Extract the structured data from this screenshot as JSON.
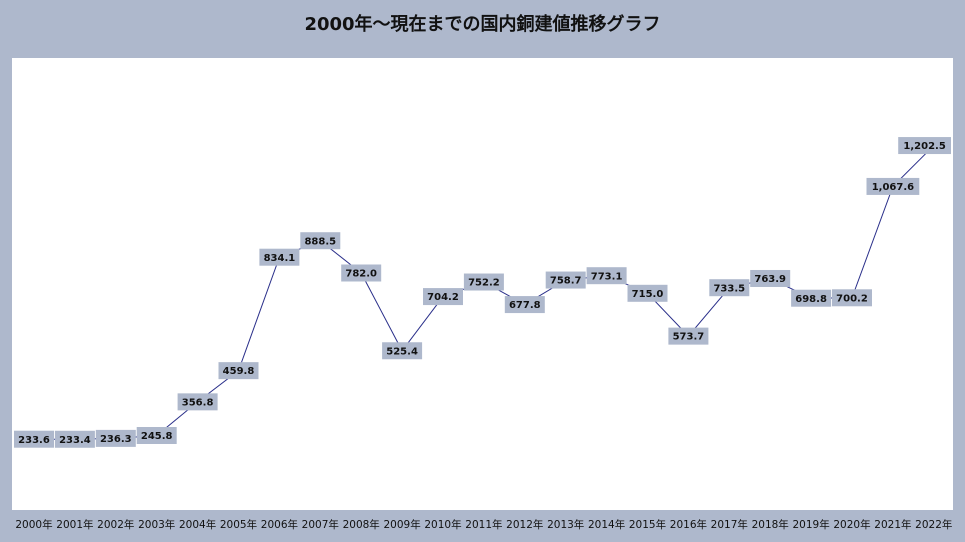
{
  "title": "2000年～現在までの国内銅建値推移グラフ",
  "colors": {
    "background": "#aeb8cc",
    "plot_background": "#ffffff",
    "line": "#2a2f8a",
    "drop_line": "#b9c6e6",
    "label_box": "#aeb8cc"
  },
  "chart_data": {
    "type": "line",
    "title": "2000年～現在までの国内銅建値推移グラフ",
    "xlabel": "",
    "ylabel": "",
    "categories": [
      "2000年",
      "2001年",
      "2002年",
      "2003年",
      "2004年",
      "2005年",
      "2006年",
      "2007年",
      "2008年",
      "2009年",
      "2010年",
      "2011年",
      "2012年",
      "2013年",
      "2014年",
      "2015年",
      "2016年",
      "2017年",
      "2018年",
      "2019年",
      "2020年",
      "2021年",
      "2022年"
    ],
    "values": [
      233.6,
      233.4,
      236.3,
      245.8,
      356.8,
      459.8,
      834.1,
      888.5,
      782.0,
      525.4,
      704.2,
      752.2,
      677.8,
      758.7,
      773.1,
      715.0,
      573.7,
      733.5,
      763.9,
      698.8,
      700.2,
      1067.6,
      1202.5
    ],
    "data_labels": [
      "233.6",
      "233.4",
      "236.3",
      "245.8",
      "356.8",
      "459.8",
      "834.1",
      "888.5",
      "782.0",
      "525.4",
      "704.2",
      "752.2",
      "677.8",
      "758.7",
      "773.1",
      "715.0",
      "573.7",
      "733.5",
      "763.9",
      "698.8",
      "700.2",
      "1,067.6",
      "1,202.5"
    ],
    "ylim": [
      0,
      1300
    ],
    "grid": false,
    "legend": "none",
    "drop_lines": true
  }
}
